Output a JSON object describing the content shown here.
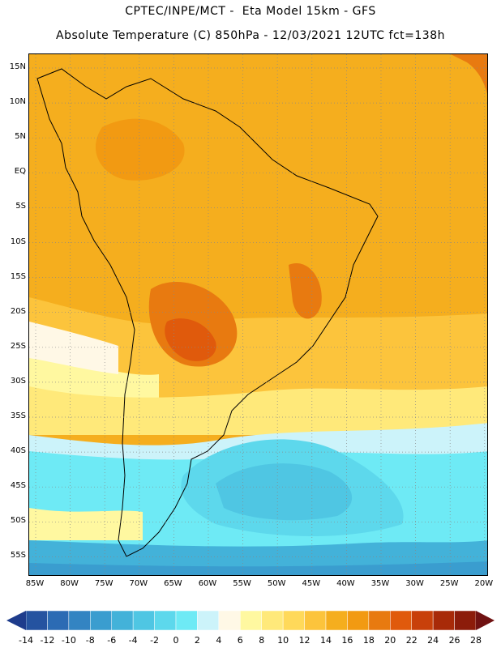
{
  "header": {
    "line1": "CPTEC/INPE/MCT -  Eta Model 15km - GFS",
    "line2": "Absolute Temperature (C) 850hPa - 12/03/2021 12UTC fct=138h"
  },
  "axes": {
    "lat_labels": [
      "15N",
      "10N",
      "5N",
      "EQ",
      "5S",
      "10S",
      "15S",
      "20S",
      "25S",
      "30S",
      "35S",
      "40S",
      "45S",
      "50S",
      "55S"
    ],
    "lon_labels": [
      "85W",
      "80W",
      "75W",
      "70W",
      "65W",
      "60W",
      "55W",
      "50W",
      "45W",
      "40W",
      "35W",
      "30W",
      "25W",
      "20W"
    ],
    "grid": "dotted"
  },
  "colorbar": {
    "labels": [
      "-14",
      "-12",
      "-10",
      "-8",
      "-6",
      "-4",
      "-2",
      "0",
      "2",
      "4",
      "6",
      "8",
      "10",
      "12",
      "14",
      "16",
      "18",
      "20",
      "22",
      "24",
      "26",
      "28"
    ],
    "colors": [
      "#1e3c8c",
      "#2553a0",
      "#2c6bb4",
      "#3384c2",
      "#3a9dcf",
      "#43b2d9",
      "#4fc6e3",
      "#5dd8ec",
      "#6eeaf5",
      "#ccf3fa",
      "#fff8e6",
      "#fff8a0",
      "#ffe97a",
      "#ffd95a",
      "#fcc43c",
      "#f5ae1e",
      "#f29a12",
      "#e87a10",
      "#e05a0c",
      "#c8400a",
      "#a82a08",
      "#8c1c0a",
      "#701212"
    ]
  }
}
